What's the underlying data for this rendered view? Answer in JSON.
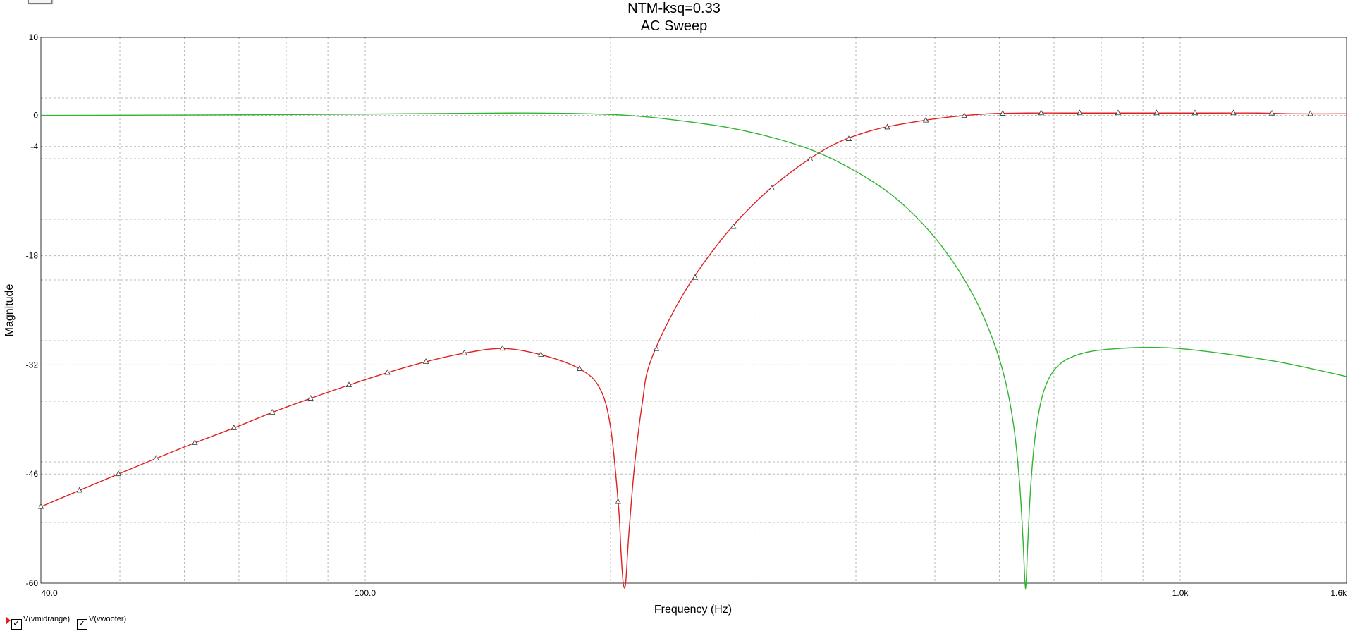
{
  "chart_data": {
    "type": "line",
    "title": "NTM-ksq=0.33",
    "subtitle": "AC Sweep",
    "xlabel": "Frequency (Hz)",
    "ylabel": "Magnitude",
    "xscale": "log",
    "xlim": [
      40,
      1600
    ],
    "ylim": [
      -60,
      10
    ],
    "x_ticks": [
      {
        "value": 40,
        "label": "40.0"
      },
      {
        "value": 100,
        "label": "100.0"
      },
      {
        "value": 1000,
        "label": "1.0k"
      },
      {
        "value": 1600,
        "label": "1.6k"
      }
    ],
    "y_ticks": [
      {
        "value": 10,
        "label": "10"
      },
      {
        "value": 0,
        "label": "0"
      },
      {
        "value": -4,
        "label": "-4"
      },
      {
        "value": -18,
        "label": "-18"
      },
      {
        "value": -32,
        "label": "-32"
      },
      {
        "value": -46,
        "label": "-46"
      },
      {
        "value": -60,
        "label": "-60"
      }
    ],
    "grid": true,
    "legend_position": "bottom-left",
    "series": [
      {
        "name": "V(vmidrange)",
        "color": "#e02020",
        "marker": "triangle",
        "points": [
          [
            40.0,
            -50.2
          ],
          [
            44.6,
            -48.1
          ],
          [
            49.8,
            -46.0
          ],
          [
            55.4,
            -44.0
          ],
          [
            61.8,
            -42.0
          ],
          [
            69.0,
            -40.1
          ],
          [
            76.9,
            -38.1
          ],
          [
            85.7,
            -36.3
          ],
          [
            95.5,
            -34.6
          ],
          [
            106.5,
            -33.0
          ],
          [
            118.7,
            -31.6
          ],
          [
            132.3,
            -30.5
          ],
          [
            147.4,
            -29.9
          ],
          [
            164.3,
            -30.7
          ],
          [
            183.2,
            -32.5
          ],
          [
            194.0,
            -35.0
          ],
          [
            200.0,
            -40.0
          ],
          [
            204.5,
            -50.0
          ],
          [
            206.0,
            -56.0
          ],
          [
            207.3,
            -60.0
          ],
          [
            208.7,
            -60.0
          ],
          [
            210.5,
            -54.0
          ],
          [
            214.0,
            -45.0
          ],
          [
            218.7,
            -37.0
          ],
          [
            224.0,
            -31.5
          ],
          [
            243.8,
            -23.5
          ],
          [
            271.8,
            -16.3
          ],
          [
            302.9,
            -10.9
          ],
          [
            337.7,
            -6.8
          ],
          [
            376.5,
            -3.7
          ],
          [
            419.7,
            -1.9
          ],
          [
            467.9,
            -0.9
          ],
          [
            521.6,
            -0.2
          ],
          [
            581.5,
            0.2
          ],
          [
            648.3,
            0.3
          ],
          [
            722.7,
            0.3
          ],
          [
            805.6,
            0.3
          ],
          [
            898.1,
            0.3
          ],
          [
            1001.2,
            0.3
          ],
          [
            1116.1,
            0.3
          ],
          [
            1244.2,
            0.3
          ],
          [
            1387.0,
            0.2
          ],
          [
            1546.2,
            0.2
          ],
          [
            1600.0,
            0.2
          ]
        ],
        "marker_x": [
          40.0,
          44.6,
          49.8,
          55.4,
          61.8,
          69.0,
          76.9,
          85.7,
          95.5,
          106.5,
          118.7,
          132.3,
          147.4,
          164.3,
          183.2,
          204.3,
          227.7,
          253.9,
          283.0,
          315.5,
          351.7,
          392.1,
          437.1,
          487.3,
          543.2,
          605.6,
          675.1,
          752.6,
          839.0,
          935.3,
          1042.6,
          1162.3,
          1295.7,
          1444.4
        ]
      },
      {
        "name": "V(vwoofer)",
        "color": "#2fb52f",
        "points": [
          [
            40.0,
            0.0
          ],
          [
            60.0,
            0.05
          ],
          [
            80.0,
            0.1
          ],
          [
            110.0,
            0.2
          ],
          [
            150.0,
            0.3
          ],
          [
            180.0,
            0.25
          ],
          [
            210.0,
            0.0
          ],
          [
            240.0,
            -0.6
          ],
          [
            280.0,
            -1.6
          ],
          [
            320.0,
            -3.0
          ],
          [
            360.0,
            -4.8
          ],
          [
            400.0,
            -7.2
          ],
          [
            440.0,
            -10.0
          ],
          [
            480.0,
            -13.6
          ],
          [
            520.0,
            -18.0
          ],
          [
            560.0,
            -23.5
          ],
          [
            590.0,
            -29.0
          ],
          [
            610.0,
            -34.0
          ],
          [
            625.0,
            -40.0
          ],
          [
            635.0,
            -47.0
          ],
          [
            641.0,
            -54.0
          ],
          [
            645.0,
            -60.0
          ],
          [
            647.0,
            -60.0
          ],
          [
            650.0,
            -55.0
          ],
          [
            656.0,
            -47.0
          ],
          [
            666.0,
            -40.0
          ],
          [
            682.0,
            -35.0
          ],
          [
            710.0,
            -32.0
          ],
          [
            760.0,
            -30.5
          ],
          [
            840.0,
            -29.9
          ],
          [
            960.0,
            -29.8
          ],
          [
            1100.0,
            -30.4
          ],
          [
            1300.0,
            -31.5
          ],
          [
            1450.0,
            -32.5
          ],
          [
            1600.0,
            -33.5
          ]
        ]
      }
    ]
  },
  "legend": {
    "items": [
      {
        "label": "V(vmidrange)",
        "color": "#e02020",
        "checked": "✓"
      },
      {
        "label": "V(vwoofer)",
        "color": "#2fb52f",
        "checked": "✓"
      }
    ]
  }
}
